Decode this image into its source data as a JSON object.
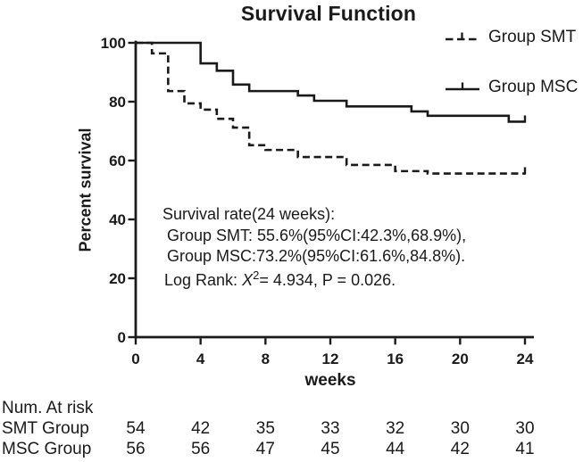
{
  "title": "Survival Function",
  "colors": {
    "ink": "#1a1a1a",
    "background": "#ffffff"
  },
  "legend": {
    "items": [
      {
        "label": "Group SMT",
        "line_style": "dashed"
      },
      {
        "label": "Group MSC",
        "line_style": "solid"
      }
    ]
  },
  "chart_data": {
    "type": "line",
    "subtype": "kaplan-meier-step-curves",
    "title": "Survival Function",
    "xlabel": "weeks",
    "ylabel": "Percent survival",
    "xlim": [
      0,
      24
    ],
    "ylim": [
      0,
      100
    ],
    "xticks": [
      0,
      4,
      8,
      12,
      16,
      20,
      24
    ],
    "yticks": [
      0,
      20,
      40,
      60,
      80,
      100
    ],
    "grid": false,
    "legend_position": "top-right",
    "series": [
      {
        "name": "Group SMT",
        "line": "dashed",
        "end_censor_tick": true,
        "steps": [
          [
            0,
            100
          ],
          [
            1,
            96.4
          ],
          [
            2,
            83.6
          ],
          [
            3,
            79.4
          ],
          [
            4,
            77.3
          ],
          [
            5,
            74.2
          ],
          [
            6,
            71.2
          ],
          [
            7,
            65.2
          ],
          [
            8,
            63.6
          ],
          [
            10,
            61.2
          ],
          [
            13,
            58.5
          ],
          [
            16,
            56.4
          ],
          [
            18,
            55.6
          ],
          [
            24,
            55.6
          ]
        ]
      },
      {
        "name": "Group MSC",
        "line": "solid",
        "end_censor_tick": true,
        "steps": [
          [
            0,
            100
          ],
          [
            4,
            93
          ],
          [
            5,
            90.5
          ],
          [
            6,
            85.8
          ],
          [
            7,
            83.6
          ],
          [
            10,
            82.1
          ],
          [
            11,
            80.3
          ],
          [
            13,
            78.4
          ],
          [
            17,
            76.7
          ],
          [
            18,
            75.2
          ],
          [
            23,
            73.2
          ],
          [
            24,
            73.2
          ]
        ]
      }
    ]
  },
  "annotation": {
    "lines": [
      "Survival rate(24 weeks):",
      "Group SMT: 55.6%(95%CI:42.3%,68.9%),",
      "Group MSC:73.2%(95%CI:61.6%,84.8%)."
    ],
    "log_rank": {
      "prefix": "Log Rank: ",
      "chi": "X",
      "exponent": "2",
      "suffix": "= 4.934, P = 0.026."
    }
  },
  "risk_table": {
    "title": "Num. At risk",
    "rows": [
      {
        "label": "SMT Group",
        "values": [
          "54",
          "42",
          "35",
          "33",
          "32",
          "30",
          "30"
        ]
      },
      {
        "label": "MSC Group",
        "values": [
          "56",
          "56",
          "47",
          "45",
          "44",
          "42",
          "41"
        ]
      }
    ]
  }
}
